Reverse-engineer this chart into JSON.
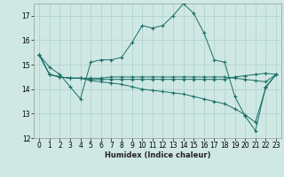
{
  "xlabel": "Humidex (Indice chaleur)",
  "background_color": "#cfe8e4",
  "grid_color": "#b0d4cf",
  "line_color": "#1a6e66",
  "ylim": [
    12,
    17.5
  ],
  "xlim": [
    -0.5,
    23.5
  ],
  "yticks": [
    12,
    13,
    14,
    15,
    16,
    17
  ],
  "xticks": [
    0,
    1,
    2,
    3,
    4,
    5,
    6,
    7,
    8,
    9,
    10,
    11,
    12,
    13,
    14,
    15,
    16,
    17,
    18,
    19,
    20,
    21,
    22,
    23
  ],
  "series": [
    [
      15.4,
      14.9,
      14.6,
      14.1,
      13.6,
      15.1,
      15.2,
      15.2,
      15.3,
      15.9,
      16.6,
      16.5,
      16.6,
      17.0,
      17.5,
      17.1,
      16.3,
      15.2,
      15.1,
      13.7,
      12.9,
      12.3,
      14.1,
      14.6
    ],
    [
      15.4,
      14.6,
      14.5,
      14.45,
      14.45,
      14.4,
      14.4,
      14.4,
      14.4,
      14.4,
      14.4,
      14.4,
      14.4,
      14.4,
      14.4,
      14.4,
      14.4,
      14.4,
      14.4,
      14.5,
      14.55,
      14.6,
      14.65,
      14.6
    ],
    [
      15.4,
      14.6,
      14.5,
      14.45,
      14.45,
      14.35,
      14.3,
      14.25,
      14.2,
      14.1,
      14.0,
      13.95,
      13.9,
      13.85,
      13.8,
      13.7,
      13.6,
      13.5,
      13.4,
      13.2,
      12.95,
      12.65,
      14.05,
      14.6
    ],
    [
      15.4,
      14.6,
      14.5,
      14.45,
      14.45,
      14.45,
      14.45,
      14.5,
      14.5,
      14.5,
      14.5,
      14.5,
      14.5,
      14.5,
      14.5,
      14.5,
      14.5,
      14.5,
      14.5,
      14.45,
      14.4,
      14.35,
      14.3,
      14.6
    ]
  ]
}
